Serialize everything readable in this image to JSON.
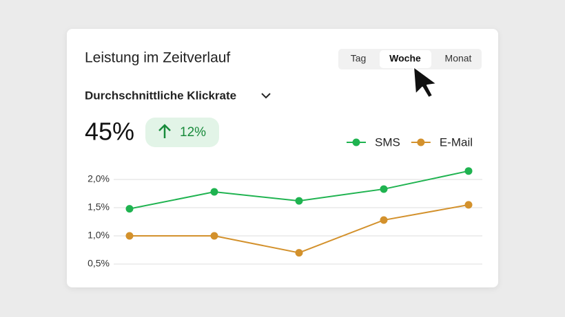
{
  "header": {
    "title": "Leistung im Zeitverlauf",
    "tabs": [
      "Tag",
      "Woche",
      "Monat"
    ]
  },
  "metric": {
    "name": "Durchschnittliche Klickrate",
    "value": "45%",
    "change": "12%"
  },
  "chart_data": {
    "type": "line",
    "categories": [
      null,
      null,
      null,
      null,
      null
    ],
    "series": [
      {
        "name": "SMS",
        "color": "#1fb350",
        "values": [
          1.48,
          1.78,
          1.62,
          1.83,
          2.15
        ]
      },
      {
        "name": "E-Mail",
        "color": "#d3912c",
        "values": [
          1.0,
          1.0,
          0.7,
          1.28,
          1.55
        ]
      }
    ],
    "ylim": [
      0.5,
      2.25
    ],
    "yticks": [
      {
        "value": 0.5,
        "label": "0,5%"
      },
      {
        "value": 1.0,
        "label": "1,0%"
      },
      {
        "value": 1.5,
        "label": "1,5%"
      },
      {
        "value": 2.0,
        "label": "2,0%"
      }
    ],
    "grid": true
  }
}
